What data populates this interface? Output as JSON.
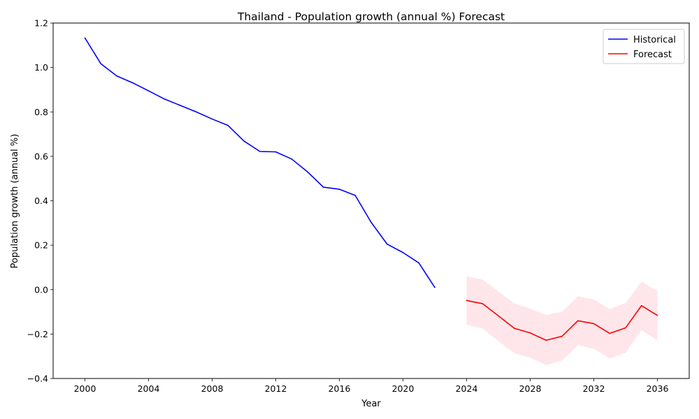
{
  "chart_data": {
    "type": "line",
    "title": "Thailand - Population growth (annual %) Forecast",
    "xlabel": "Year",
    "ylabel": "Population growth (annual %)",
    "xlim": [
      1998,
      2038
    ],
    "ylim": [
      -0.4,
      1.2
    ],
    "xticks": [
      2000,
      2004,
      2008,
      2012,
      2016,
      2020,
      2024,
      2028,
      2032,
      2036
    ],
    "yticks": [
      -0.4,
      -0.2,
      0.0,
      0.2,
      0.4,
      0.6,
      0.8,
      1.0,
      1.2
    ],
    "ytick_labels": [
      "−0.4",
      "−0.2",
      "0.0",
      "0.2",
      "0.4",
      "0.6",
      "0.8",
      "1.0",
      "1.2"
    ],
    "grid": false,
    "legend_position": "top-right",
    "series": [
      {
        "name": "Historical",
        "color": "#0000ff",
        "x": [
          2000,
          2001,
          2002,
          2003,
          2004,
          2005,
          2006,
          2007,
          2008,
          2009,
          2010,
          2011,
          2012,
          2013,
          2014,
          2015,
          2016,
          2017,
          2018,
          2019,
          2020,
          2021,
          2022
        ],
        "y": [
          1.133,
          1.017,
          0.962,
          0.931,
          0.895,
          0.858,
          0.829,
          0.8,
          0.768,
          0.739,
          0.669,
          0.622,
          0.62,
          0.588,
          0.53,
          0.461,
          0.452,
          0.424,
          0.303,
          0.205,
          0.167,
          0.12,
          0.01
        ]
      },
      {
        "name": "Forecast",
        "color": "#ff0000",
        "x": [
          2024,
          2025,
          2026,
          2027,
          2028,
          2029,
          2030,
          2031,
          2032,
          2033,
          2034,
          2035,
          2036
        ],
        "y": [
          -0.049,
          -0.063,
          -0.118,
          -0.174,
          -0.195,
          -0.228,
          -0.21,
          -0.14,
          -0.153,
          -0.197,
          -0.172,
          -0.072,
          -0.116
        ],
        "band_upper": [
          0.06,
          0.045,
          -0.008,
          -0.062,
          -0.085,
          -0.114,
          -0.1,
          -0.03,
          -0.044,
          -0.088,
          -0.06,
          0.036,
          -0.006
        ],
        "band_lower": [
          -0.158,
          -0.175,
          -0.232,
          -0.286,
          -0.307,
          -0.34,
          -0.32,
          -0.25,
          -0.266,
          -0.31,
          -0.284,
          -0.183,
          -0.228
        ],
        "band_color": "#ffc0cb"
      }
    ]
  }
}
